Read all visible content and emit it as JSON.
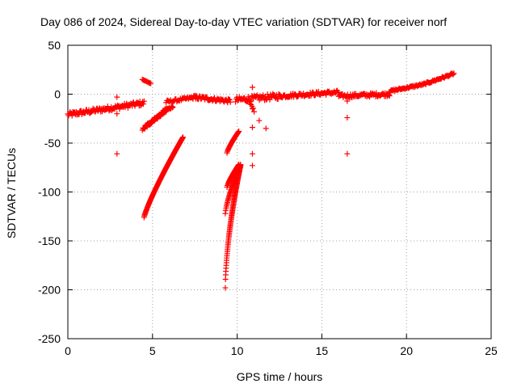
{
  "chart_data": {
    "type": "scatter",
    "title": "Day 086 of 2024, Sidereal Day-to-day VTEC variation (SDTVAR) for receiver norf",
    "xlabel": "GPS time / hours",
    "ylabel": "SDTVAR / TECUs",
    "xlim": [
      0,
      25
    ],
    "ylim": [
      -250,
      50
    ],
    "xticks": [
      0,
      5,
      10,
      15,
      20,
      25
    ],
    "yticks": [
      -250,
      -200,
      -150,
      -100,
      -50,
      0,
      50
    ],
    "grid": true,
    "marker": "+",
    "color": "#ff0000",
    "series": [
      {
        "segments": [
          {
            "x0": 0.0,
            "x1": 4.5,
            "y0": -21,
            "y1": -9,
            "n": 110,
            "jitter": 2.5
          },
          {
            "x0": 4.4,
            "x1": 5.9,
            "y0": -36,
            "y1": -14,
            "n": 45,
            "jitter": 1.5
          },
          {
            "x0": 4.6,
            "x1": 6.2,
            "y0": -33,
            "y1": -12,
            "n": 40,
            "jitter": 1.5
          },
          {
            "x0": 4.4,
            "x1": 4.9,
            "y0": 15,
            "y1": 11,
            "n": 10,
            "jitter": 0.5
          },
          {
            "x0": 5.8,
            "x1": 7.6,
            "y0": -8,
            "y1": -3,
            "n": 35,
            "jitter": 1.5
          },
          {
            "x0": 7.4,
            "x1": 9.6,
            "y0": -3,
            "y1": -7,
            "n": 55,
            "jitter": 2.0
          },
          {
            "x0": 9.9,
            "x1": 12.5,
            "y0": -6,
            "y1": -2,
            "n": 60,
            "jitter": 3.0
          },
          {
            "x0": 12.5,
            "x1": 16.0,
            "y0": -2,
            "y1": 2,
            "n": 80,
            "jitter": 2.0
          },
          {
            "x0": 16.0,
            "x1": 19.0,
            "y0": -2,
            "y1": 0,
            "n": 70,
            "jitter": 2.0
          },
          {
            "x0": 19.0,
            "x1": 21.0,
            "y0": 3,
            "y1": 10,
            "n": 45,
            "jitter": 1.0
          },
          {
            "x0": 21.0,
            "x1": 22.8,
            "y0": 10,
            "y1": 21,
            "n": 40,
            "jitter": 1.0
          },
          {
            "x0": 10.7,
            "x1": 11.0,
            "y0": -8,
            "y1": -17,
            "n": 6,
            "jitter": 1.0
          }
        ]
      },
      {
        "curves": [
          {
            "x0": 4.5,
            "x1": 6.8,
            "y0": -126,
            "y1": -44,
            "pow": 0.85,
            "n": 110
          },
          {
            "x0": 9.3,
            "x1": 10.2,
            "y0": -198,
            "y1": -73,
            "pow": 0.6,
            "n": 85
          },
          {
            "x0": 9.3,
            "x1": 10.2,
            "y0": -122,
            "y1": -72,
            "pow": 0.75,
            "n": 45
          },
          {
            "x0": 9.4,
            "x1": 10.1,
            "y0": -95,
            "y1": -72,
            "pow": 0.8,
            "n": 30
          },
          {
            "x0": 9.4,
            "x1": 10.1,
            "y0": -60,
            "y1": -38,
            "pow": 0.8,
            "n": 28
          }
        ]
      },
      {
        "points": [
          [
            2.9,
            -61
          ],
          [
            2.9,
            -20
          ],
          [
            2.9,
            -3
          ],
          [
            10.9,
            7
          ],
          [
            10.9,
            -61
          ],
          [
            10.9,
            -73
          ],
          [
            10.9,
            -34
          ],
          [
            10.9,
            -15
          ],
          [
            11.7,
            -35
          ],
          [
            11.3,
            -27
          ],
          [
            16.5,
            -61
          ],
          [
            16.5,
            -24
          ],
          [
            16.5,
            -7
          ]
        ]
      }
    ]
  }
}
